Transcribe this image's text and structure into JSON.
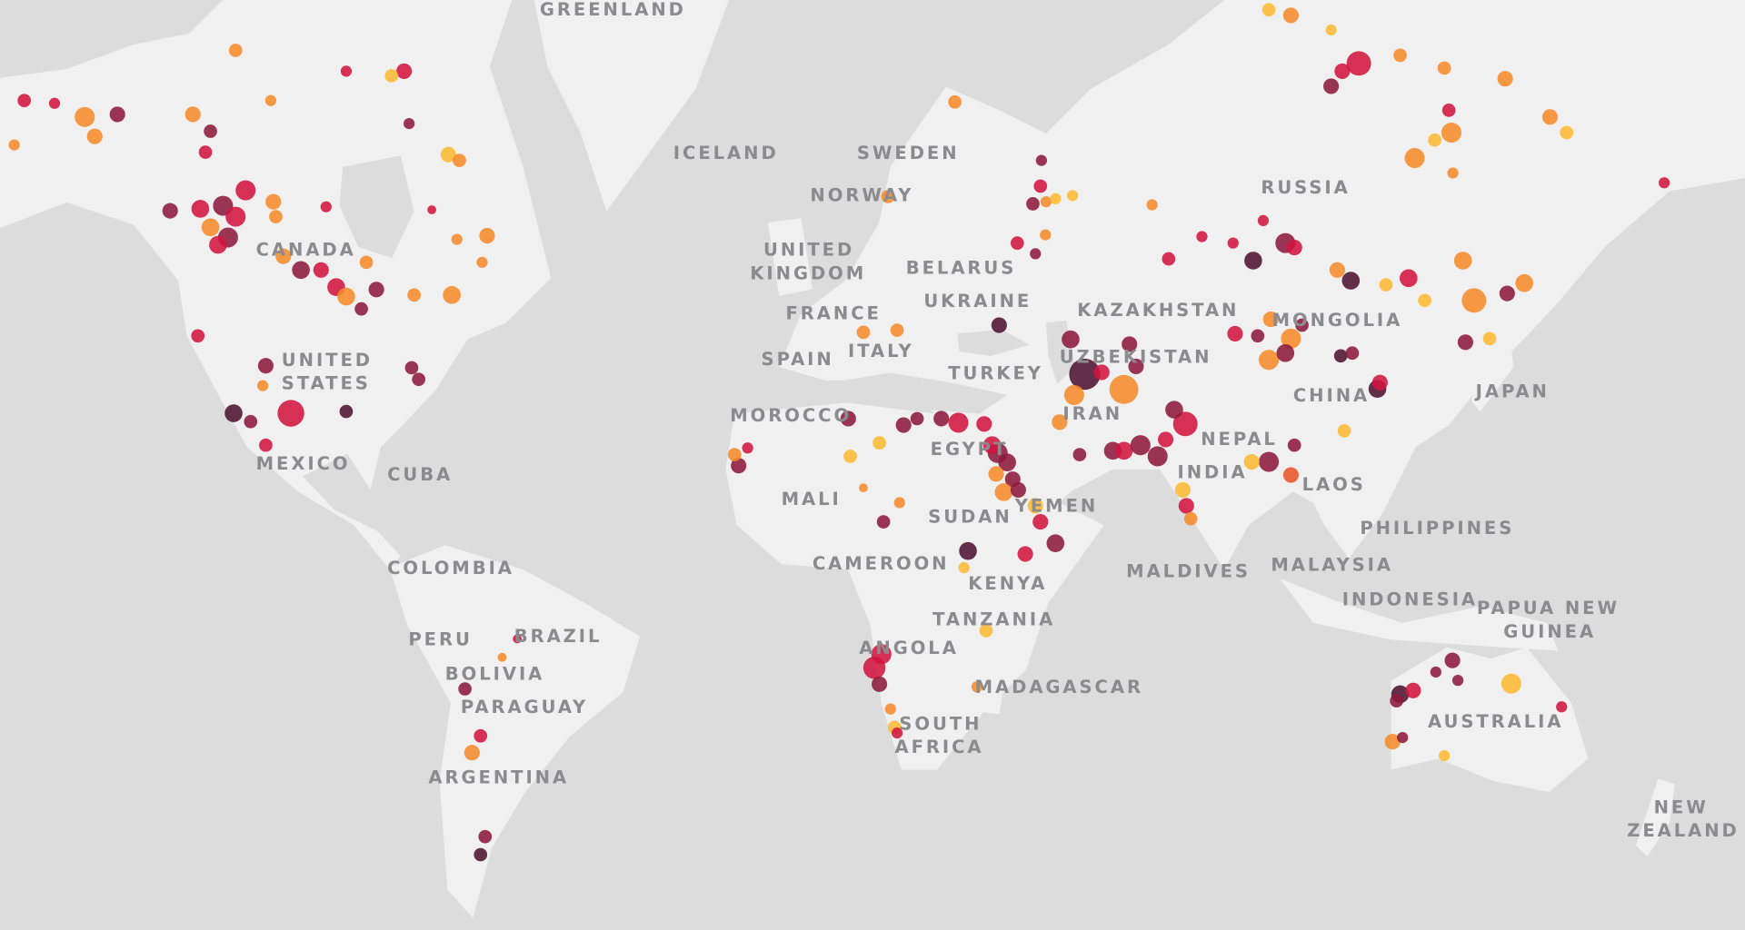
{
  "map": {
    "basemap_colors": {
      "water": "#dcdcdc",
      "land": "#f0f0f0",
      "label": "#8b8b8e"
    },
    "labels": [
      [
        "GREENLAND"
      ],
      [
        "ICELAND"
      ],
      [
        "SWEDEN"
      ],
      [
        "NORWAY"
      ],
      [
        "UNITED",
        "KINGDOM"
      ],
      [
        "BELARUS"
      ],
      [
        "UKRAINE"
      ],
      [
        "FRANCE"
      ],
      [
        "KAZAKHSTAN"
      ],
      [
        "RUSSIA"
      ],
      [
        "MONGOLIA"
      ],
      [
        "SPAIN"
      ],
      [
        "ITALY"
      ],
      [
        "TURKEY"
      ],
      [
        "UZBEKISTAN"
      ],
      [
        "CHINA"
      ],
      [
        "JAPAN"
      ],
      [
        "MOROCCO"
      ],
      [
        "IRAN"
      ],
      [
        "EGYPT"
      ],
      [
        "NEPAL"
      ],
      [
        "INDIA"
      ],
      [
        "LAOS"
      ],
      [
        "MALI"
      ],
      [
        "SUDAN"
      ],
      [
        "YEMEN"
      ],
      [
        "PHILIPPINES"
      ],
      [
        "CAMEROON"
      ],
      [
        "KENYA"
      ],
      [
        "MALDIVES"
      ],
      [
        "MALAYSIA"
      ],
      [
        "INDONESIA"
      ],
      [
        "PAPUA NEW",
        "GUINEA"
      ],
      [
        "TANZANIA"
      ],
      [
        "ANGOLA"
      ],
      [
        "MADAGASCAR"
      ],
      [
        "SOUTH",
        "AFRICA"
      ],
      [
        "AUSTRALIA"
      ],
      [
        "NEW",
        "ZEALAND"
      ],
      [
        "CANADA"
      ],
      [
        "UNITED",
        "STATES"
      ],
      [
        "MEXICO"
      ],
      [
        "CUBA"
      ],
      [
        "COLOMBIA"
      ],
      [
        "PERU"
      ],
      [
        "BRAZIL"
      ],
      [
        "BOLIVIA"
      ],
      [
        "PARAGUAY"
      ],
      [
        "ARGENTINA"
      ]
    ],
    "dot_colors": {
      "Y": "#fdb933",
      "O": "#f58a2a",
      "R": "#e8552a",
      "C": "#d2143f",
      "M": "#8c1a3c",
      "D": "#4f1232"
    },
    "dots": [
      [
        -158,
        69,
        "C",
        6
      ],
      [
        -152,
        68.8,
        "C",
        5
      ],
      [
        -146,
        67.8,
        "O",
        9
      ],
      [
        -144,
        66.3,
        "O",
        7
      ],
      [
        -139.5,
        68,
        "M",
        7
      ],
      [
        -160,
        65.6,
        "O",
        5
      ],
      [
        -124.5,
        68,
        "O",
        7
      ],
      [
        -121,
        66.7,
        "M",
        6
      ],
      [
        -122,
        65,
        "C",
        6
      ],
      [
        -116,
        72.3,
        "O",
        6
      ],
      [
        -109,
        69,
        "O",
        5
      ],
      [
        -94,
        71,
        "C",
        5
      ],
      [
        -82.5,
        71,
        "C",
        7
      ],
      [
        -81.5,
        67.3,
        "M",
        5
      ],
      [
        -85,
        70.7,
        "Y",
        6
      ],
      [
        -73.7,
        64.8,
        "Y",
        7
      ],
      [
        -71.5,
        64.3,
        "O",
        6
      ],
      [
        -114,
        61.6,
        "C",
        9
      ],
      [
        -123,
        59.8,
        "C",
        8
      ],
      [
        -118.5,
        60.1,
        "M",
        9
      ],
      [
        -121,
        57.9,
        "O",
        8
      ],
      [
        -116,
        59,
        "C",
        9
      ],
      [
        -117.5,
        56.8,
        "M",
        9
      ],
      [
        -119.5,
        56,
        "C",
        8
      ],
      [
        -108.5,
        60.5,
        "O",
        7
      ],
      [
        -129,
        59.6,
        "M",
        7
      ],
      [
        -108,
        59,
        "O",
        6
      ],
      [
        -98,
        60,
        "C",
        5
      ],
      [
        -103,
        53.1,
        "M",
        8
      ],
      [
        -99,
        53.1,
        "C",
        7
      ],
      [
        -106.5,
        54.7,
        "O",
        7
      ],
      [
        -96,
        51,
        "C",
        8
      ],
      [
        -94,
        49.8,
        "O",
        8
      ],
      [
        -88,
        50.7,
        "M",
        7
      ],
      [
        -91,
        48.2,
        "M",
        6
      ],
      [
        -90,
        54,
        "O",
        6
      ],
      [
        -80.5,
        50,
        "O",
        6
      ],
      [
        -73,
        50,
        "O",
        8
      ],
      [
        -66,
        57,
        "O",
        7
      ],
      [
        -72,
        56.6,
        "O",
        5
      ],
      [
        -77,
        59.7,
        "C",
        4
      ],
      [
        -67,
        54,
        "O",
        5
      ],
      [
        -110,
        40.1,
        "M",
        7
      ],
      [
        -110.6,
        37,
        "O",
        5
      ],
      [
        -123.5,
        44.5,
        "C",
        6
      ],
      [
        -105,
        32.5,
        "C",
        12
      ],
      [
        -116.4,
        32.5,
        "D",
        8
      ],
      [
        -113,
        31.1,
        "M",
        6
      ],
      [
        -110,
        27,
        "C",
        6
      ],
      [
        -94,
        32.8,
        "D",
        6
      ],
      [
        -81,
        39.8,
        "M",
        6
      ],
      [
        -79.6,
        38,
        "M",
        6
      ],
      [
        -70.4,
        -20,
        "M",
        6
      ],
      [
        -67.3,
        -28.5,
        "C",
        6
      ],
      [
        -69,
        -31.4,
        "O",
        7
      ],
      [
        -66.4,
        -44.5,
        "M",
        6
      ],
      [
        -67.3,
        -47,
        "D",
        6
      ],
      [
        -63,
        -14,
        "O",
        4
      ],
      [
        -60,
        -10.4,
        "C",
        4
      ],
      [
        -16,
        23.3,
        "M",
        7
      ],
      [
        -16.8,
        25.3,
        "O",
        6
      ],
      [
        -14.2,
        26.5,
        "C",
        5
      ],
      [
        5.8,
        31.6,
        "M",
        7
      ],
      [
        6.2,
        25,
        "Y",
        6
      ],
      [
        12,
        27.4,
        "Y",
        6
      ],
      [
        16.8,
        30.5,
        "M",
        7
      ],
      [
        19.5,
        31.6,
        "M",
        6
      ],
      [
        24.3,
        31.6,
        "M",
        7
      ],
      [
        27.7,
        30.9,
        "C",
        9
      ],
      [
        32.8,
        30.7,
        "C",
        7
      ],
      [
        35.5,
        25.6,
        "M",
        9
      ],
      [
        34.4,
        27,
        "C",
        8
      ],
      [
        37.4,
        23.9,
        "M",
        8
      ],
      [
        38.5,
        20.8,
        "M",
        7
      ],
      [
        35.2,
        21.8,
        "O",
        7
      ],
      [
        36.7,
        18.4,
        "O",
        8
      ],
      [
        43,
        15.8,
        "Y",
        7
      ],
      [
        39.6,
        18.8,
        "M",
        7
      ],
      [
        44,
        12.7,
        "C",
        7
      ],
      [
        47,
        8.5,
        "M",
        8
      ],
      [
        41,
        6.4,
        "C",
        7
      ],
      [
        29.6,
        7,
        "D",
        8
      ],
      [
        28.8,
        3.7,
        "Y",
        5
      ],
      [
        12.8,
        12.7,
        "M",
        6
      ],
      [
        16,
        16.4,
        "O",
        5
      ],
      [
        8.8,
        19.2,
        "O",
        4
      ],
      [
        33.2,
        -8.8,
        "Y",
        6
      ],
      [
        12.4,
        -13.4,
        "C",
        9
      ],
      [
        11,
        -16,
        "C",
        10
      ],
      [
        12,
        -19.1,
        "M",
        7
      ],
      [
        14.2,
        -23.7,
        "O",
        5
      ],
      [
        15,
        -27,
        "Y",
        6
      ],
      [
        15.5,
        -28,
        "C",
        5
      ],
      [
        31.4,
        -19.6,
        "O",
        5
      ],
      [
        44.2,
        64.3,
        "M",
        5
      ],
      [
        44,
        62,
        "C",
        6
      ],
      [
        42.5,
        60.3,
        "M",
        6
      ],
      [
        45.1,
        60.5,
        "O",
        5
      ],
      [
        47,
        60.8,
        "Y",
        5
      ],
      [
        50.4,
        61.1,
        "Y",
        5
      ],
      [
        39.4,
        56.2,
        "C",
        6
      ],
      [
        45,
        57.1,
        "O",
        5
      ],
      [
        43,
        55,
        "M",
        5
      ],
      [
        35.8,
        46,
        "D",
        7
      ],
      [
        27,
        68.9,
        "O",
        6
      ],
      [
        13.7,
        61,
        "O",
        6
      ],
      [
        8.8,
        45,
        "O",
        6
      ],
      [
        15.5,
        45.3,
        "O",
        6
      ],
      [
        50,
        44,
        "M",
        8
      ],
      [
        52.8,
        38.8,
        "D",
        14
      ],
      [
        56.2,
        39.1,
        "C",
        7
      ],
      [
        60.6,
        36.4,
        "O",
        13
      ],
      [
        61.7,
        43.3,
        "M",
        7
      ],
      [
        63,
        40,
        "M",
        7
      ],
      [
        50.7,
        35.5,
        "O",
        9
      ],
      [
        47.8,
        31,
        "O",
        7
      ],
      [
        51.8,
        25.3,
        "M",
        6
      ],
      [
        72.8,
        30.7,
        "C",
        11
      ],
      [
        70.6,
        33.1,
        "M",
        8
      ],
      [
        58.4,
        26,
        "M",
        8
      ],
      [
        60.6,
        26,
        "C",
        8
      ],
      [
        63.9,
        27,
        "M",
        9
      ],
      [
        67.3,
        25,
        "M",
        9
      ],
      [
        68.9,
        28,
        "C",
        7
      ],
      [
        72.3,
        18.8,
        "Y",
        7
      ],
      [
        73,
        15.8,
        "C",
        7
      ],
      [
        73.9,
        13.3,
        "O",
        6
      ],
      [
        89.4,
        24,
        "M",
        9
      ],
      [
        93.8,
        21.6,
        "R",
        7
      ],
      [
        86,
        24,
        "Y",
        7
      ],
      [
        94.5,
        27,
        "M",
        6
      ],
      [
        104.4,
        29.5,
        "Y",
        6
      ],
      [
        107.3,
        71.5,
        "C",
        11
      ],
      [
        104,
        71,
        "C",
        7
      ],
      [
        101.8,
        70,
        "M",
        7
      ],
      [
        93.8,
        74.3,
        "O",
        7
      ],
      [
        89.4,
        74.6,
        "Y",
        6
      ],
      [
        101.8,
        73.5,
        "Y",
        5
      ],
      [
        115.5,
        72,
        "O",
        6
      ],
      [
        124.3,
        71.2,
        "O",
        6
      ],
      [
        136.4,
        70.5,
        "O",
        7
      ],
      [
        145.3,
        67.8,
        "O",
        7
      ],
      [
        148.6,
        66.6,
        "Y",
        6
      ],
      [
        125.7,
        66.6,
        "O",
        9
      ],
      [
        122.4,
        66,
        "Y",
        6
      ],
      [
        118.4,
        64.5,
        "O",
        9
      ],
      [
        125.2,
        68.3,
        "C",
        6
      ],
      [
        126,
        63.2,
        "O",
        5
      ],
      [
        168,
        62.3,
        "C",
        5
      ],
      [
        92.7,
        56.2,
        "M",
        9
      ],
      [
        94.5,
        55.7,
        "C",
        7
      ],
      [
        86.3,
        54.2,
        "D",
        8
      ],
      [
        82.3,
        56.2,
        "C",
        5
      ],
      [
        76.1,
        56.9,
        "C",
        5
      ],
      [
        69.5,
        54.4,
        "C",
        6
      ],
      [
        66.2,
        60.2,
        "O",
        5
      ],
      [
        88.3,
        58.6,
        "C",
        5
      ],
      [
        103,
        53.1,
        "O",
        7
      ],
      [
        105.7,
        51.8,
        "D",
        8
      ],
      [
        112.7,
        51.3,
        "Y",
        6
      ],
      [
        117.2,
        52.1,
        "C",
        8
      ],
      [
        128,
        54.2,
        "O",
        8
      ],
      [
        130.2,
        49.3,
        "O",
        11
      ],
      [
        136.8,
        50.2,
        "M",
        7
      ],
      [
        140.2,
        51.5,
        "O",
        8
      ],
      [
        128.5,
        43.6,
        "M",
        7
      ],
      [
        133.3,
        44.1,
        "Y",
        6
      ],
      [
        120.4,
        49.3,
        "Y",
        6
      ],
      [
        89.8,
        46.8,
        "O",
        7
      ],
      [
        82.7,
        44.8,
        "C",
        7
      ],
      [
        87.2,
        44.5,
        "M",
        6
      ],
      [
        93.8,
        44.1,
        "O",
        9
      ],
      [
        89.4,
        41,
        "O",
        9
      ],
      [
        96,
        46,
        "M",
        6
      ],
      [
        92.7,
        42,
        "M",
        8
      ],
      [
        103.7,
        41.6,
        "D",
        6
      ],
      [
        106,
        42,
        "M",
        6
      ],
      [
        111,
        36.5,
        "D",
        8
      ],
      [
        111.5,
        37.5,
        "C",
        7
      ],
      [
        125.9,
        -14.6,
        "M",
        7
      ],
      [
        122.6,
        -16.8,
        "M",
        5
      ],
      [
        115.5,
        -21,
        "D",
        8
      ],
      [
        118.1,
        -20.3,
        "C",
        7
      ],
      [
        114.8,
        -22.2,
        "M",
        6
      ],
      [
        137.6,
        -19,
        "Y",
        9
      ],
      [
        147.6,
        -23.3,
        "C",
        5
      ],
      [
        127,
        -18.4,
        "M",
        5
      ],
      [
        114,
        -29.5,
        "O",
        7
      ],
      [
        116,
        -28.8,
        "M",
        5
      ],
      [
        124.3,
        -31.9,
        "Y",
        5
      ]
    ]
  }
}
